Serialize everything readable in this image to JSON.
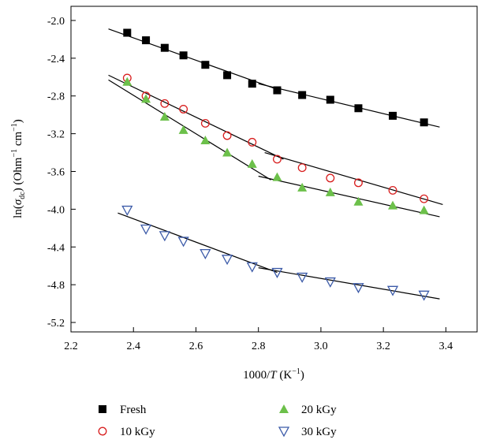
{
  "chart_data": {
    "type": "scatter",
    "xlabel_parts": {
      "pre": "1000/",
      "var": "T",
      "post": " (K",
      "sup": "−1",
      "end": ")"
    },
    "ylabel_parts": {
      "pre": "ln(",
      "var": "σ",
      "sub": "dc",
      "mid": ") (Ohm",
      "sup1": "−1",
      "mid2": " cm",
      "sup2": "−1",
      "end": ")"
    },
    "xlim": [
      2.2,
      3.5
    ],
    "ylim": [
      -5.3,
      -1.85
    ],
    "x_ticks": [
      "2.2",
      "2.4",
      "2.6",
      "2.8",
      "3.0",
      "3.2",
      "3.4"
    ],
    "y_ticks": [
      "-2.0",
      "-2.4",
      "-2.8",
      "-3.2",
      "-3.6",
      "-4.0",
      "-4.4",
      "-4.8",
      "-5.2"
    ],
    "grid": false,
    "legend_position": "bottom",
    "series": [
      {
        "name": "Fresh",
        "marker": "filled-square",
        "color": "#000000",
        "x": [
          2.38,
          2.44,
          2.5,
          2.56,
          2.63,
          2.7,
          2.78,
          2.86,
          2.94,
          3.03,
          3.12,
          3.23,
          3.33
        ],
        "y": [
          -2.13,
          -2.21,
          -2.29,
          -2.37,
          -2.47,
          -2.58,
          -2.67,
          -2.74,
          -2.79,
          -2.84,
          -2.93,
          -3.01,
          -3.08
        ],
        "fit_segments": [
          [
            [
              2.32,
              -2.09
            ],
            [
              2.86,
              -2.73
            ]
          ],
          [
            [
              2.8,
              -2.67
            ],
            [
              3.38,
              -3.13
            ]
          ]
        ]
      },
      {
        "name": "10 kGy",
        "marker": "open-circle",
        "color": "#d81e1e",
        "x": [
          2.38,
          2.44,
          2.5,
          2.56,
          2.63,
          2.7,
          2.78,
          2.86,
          2.94,
          3.03,
          3.12,
          3.23,
          3.33
        ],
        "y": [
          -2.61,
          -2.8,
          -2.88,
          -2.94,
          -3.09,
          -3.22,
          -3.29,
          -3.47,
          -3.56,
          -3.67,
          -3.72,
          -3.8,
          -3.89
        ],
        "fit_segments": [
          [
            [
              2.32,
              -2.58
            ],
            [
              2.88,
              -3.47
            ]
          ],
          [
            [
              2.82,
              -3.4
            ],
            [
              3.39,
              -3.95
            ]
          ]
        ]
      },
      {
        "name": "20 kGy",
        "marker": "filled-triangle",
        "color": "#6cc04a",
        "x": [
          2.38,
          2.44,
          2.5,
          2.56,
          2.63,
          2.7,
          2.78,
          2.86,
          2.94,
          3.03,
          3.12,
          3.23,
          3.33
        ],
        "y": [
          -2.65,
          -2.83,
          -3.02,
          -3.16,
          -3.27,
          -3.4,
          -3.52,
          -3.66,
          -3.77,
          -3.82,
          -3.92,
          -3.96,
          -4.01
        ],
        "fit_segments": [
          [
            [
              2.32,
              -2.63
            ],
            [
              2.84,
              -3.69
            ]
          ],
          [
            [
              2.8,
              -3.65
            ],
            [
              3.38,
              -4.08
            ]
          ]
        ]
      },
      {
        "name": "30 kGy",
        "marker": "open-triangle-down",
        "color": "#3b5aa8",
        "x": [
          2.38,
          2.44,
          2.5,
          2.56,
          2.63,
          2.7,
          2.78,
          2.86,
          2.94,
          3.03,
          3.12,
          3.23,
          3.33
        ],
        "y": [
          -4.01,
          -4.21,
          -4.28,
          -4.34,
          -4.47,
          -4.53,
          -4.61,
          -4.67,
          -4.72,
          -4.77,
          -4.83,
          -4.86,
          -4.91
        ],
        "fit_segments": [
          [
            [
              2.35,
              -4.04
            ],
            [
              2.86,
              -4.67
            ]
          ],
          [
            [
              2.8,
              -4.62
            ],
            [
              3.38,
              -4.95
            ]
          ]
        ]
      }
    ]
  }
}
